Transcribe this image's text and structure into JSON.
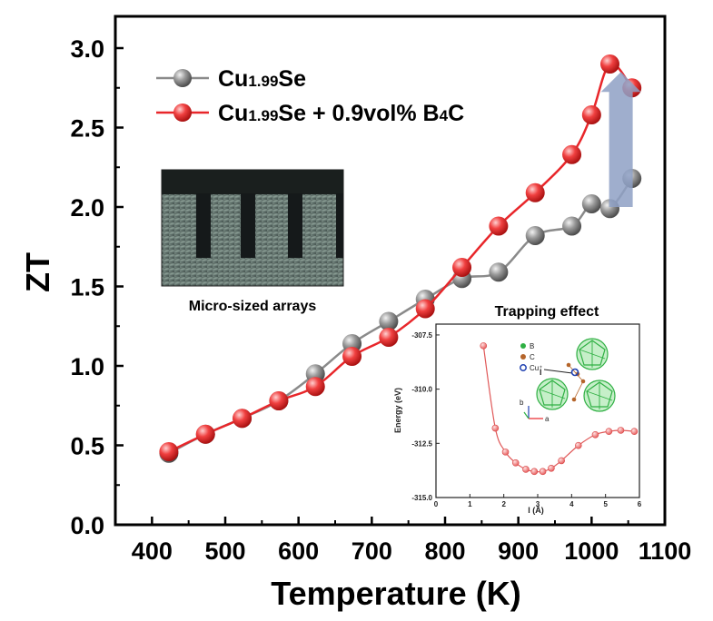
{
  "chart_data": {
    "type": "line",
    "xlabel": "Temperature (K)",
    "ylabel": "ZT",
    "xlim": [
      350,
      1100
    ],
    "ylim": [
      0.0,
      3.2
    ],
    "xticks": [
      400,
      500,
      600,
      700,
      800,
      900,
      1000,
      1100
    ],
    "yticks": [
      0.0,
      0.5,
      1.0,
      1.5,
      2.0,
      2.5,
      3.0
    ],
    "xtick_labels": [
      "400",
      "500",
      "600",
      "700",
      "800",
      "900",
      "1000",
      "1100"
    ],
    "ytick_labels": [
      "0.0",
      "0.5",
      "1.0",
      "1.5",
      "2.0",
      "2.5",
      "3.0"
    ],
    "series": [
      {
        "name": "Cu1.99Se",
        "name_parts": [
          "Cu",
          "1.99",
          "Se"
        ],
        "color": "#8a8a8a",
        "x": [
          423,
          473,
          523,
          573,
          623,
          673,
          723,
          773,
          823,
          873,
          923,
          973,
          1000,
          1025,
          1055
        ],
        "y": [
          0.45,
          0.57,
          0.67,
          0.78,
          0.95,
          1.14,
          1.28,
          1.42,
          1.55,
          1.59,
          1.82,
          1.88,
          2.02,
          1.99,
          2.18
        ]
      },
      {
        "name": "Cu1.99Se + 0.9vol% B4C",
        "name_parts": [
          "Cu",
          "1.99",
          "Se + 0.9vol% B",
          "4",
          "C"
        ],
        "color": "#e8262a",
        "x": [
          423,
          473,
          523,
          573,
          623,
          673,
          723,
          773,
          823,
          873,
          923,
          973,
          1000,
          1025,
          1055
        ],
        "y": [
          0.46,
          0.57,
          0.67,
          0.78,
          0.87,
          1.06,
          1.18,
          1.36,
          1.62,
          1.88,
          2.09,
          2.33,
          2.58,
          2.9,
          2.75
        ]
      }
    ],
    "legend_placement": "top-left",
    "grid": false,
    "annotations": {
      "arrow": {
        "x": 1040,
        "y_from": 2.0,
        "y_to": 2.85,
        "color": "#8ea0c4"
      }
    },
    "insets": [
      {
        "kind": "photo",
        "caption": "Micro-sized arrays"
      },
      {
        "kind": "line",
        "title": "Trapping effect",
        "xlabel": "l (Å)",
        "ylabel": "Energy (eV)",
        "xlim": [
          0,
          6
        ],
        "ylim": [
          -315.0,
          -307.0
        ],
        "xticks": [
          0,
          1,
          2,
          3,
          4,
          5,
          6
        ],
        "xtick_labels": [
          "0",
          "1",
          "2",
          "3",
          "4",
          "5",
          "6"
        ],
        "yticks": [
          -307.5,
          -310.0,
          -312.5,
          -315.0
        ],
        "ytick_labels": [
          "-307.5",
          "-310.0",
          "-312.5",
          "-315.0"
        ],
        "legend": [
          "B",
          "C",
          "Cu⁺"
        ],
        "legend_colors": [
          "#2fb043",
          "#b5652a",
          "#1d3fb0"
        ],
        "axis_labels": [
          "l",
          "a",
          "b"
        ],
        "series": [
          {
            "color": "#e05858",
            "x": [
              1.4,
              1.75,
              2.05,
              2.35,
              2.65,
              2.9,
              3.15,
              3.4,
              3.7,
              4.2,
              4.7,
              5.1,
              5.45,
              5.85
            ],
            "y": [
              -308.0,
              -311.8,
              -312.9,
              -313.4,
              -313.7,
              -313.8,
              -313.8,
              -313.65,
              -313.3,
              -312.6,
              -312.1,
              -311.95,
              -311.9,
              -311.95
            ]
          }
        ]
      }
    ]
  }
}
